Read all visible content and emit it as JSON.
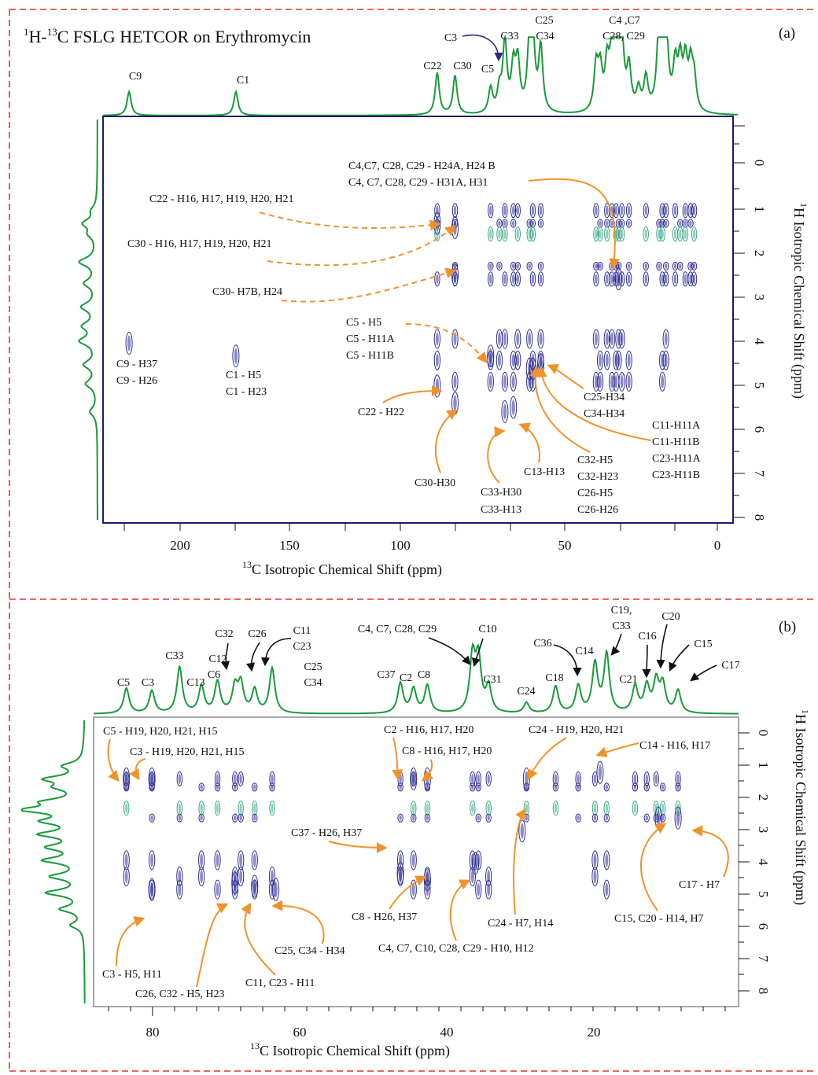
{
  "figure": {
    "title_prefix": "1H-13C",
    "title_rest": " FSLG HETCOR on Erythromycin",
    "panel_a_label": "(a)",
    "panel_b_label": "(b)"
  },
  "colors": {
    "border_dash": "#e8322a",
    "spectrum_1d": "#1a9a3a",
    "contour": "#2e2e96",
    "contour_light": "#3aa88a",
    "annotation_arrow": "#f0922b",
    "black_arrow": "#111111",
    "frame_a": "#1c1c6e",
    "frame_b": "#8a8a8a"
  },
  "chart_data": [
    {
      "panel": "(a)",
      "type": "heatmap",
      "title": "1H-13C FSLG HETCOR on Erythromycin",
      "xlabel": "13C Isotropic Chemical Shift (ppm)",
      "ylabel": "1H Isotropic Chemical Shift (ppm)",
      "x_axis": {
        "reversed": true,
        "xlim": [
          225,
          -5
        ],
        "ticks": [
          200,
          150,
          100,
          50,
          0
        ]
      },
      "y_axis": {
        "reversed": true,
        "ylim": [
          -1.2,
          8.3
        ],
        "ticks": [
          0,
          1,
          2,
          3,
          4,
          5,
          6,
          7,
          8
        ]
      },
      "projection_13C": [
        {
          "ppm": 215.5,
          "height": 0.32
        },
        {
          "ppm": 176.5,
          "height": 0.32
        },
        {
          "ppm": 103.0,
          "height": 0.56
        },
        {
          "ppm": 96.5,
          "height": 0.52
        },
        {
          "ppm": 83.5,
          "height": 0.33
        },
        {
          "ppm": 80.3,
          "height": 0.29
        },
        {
          "ppm": 78.3,
          "height": 0.94
        },
        {
          "ppm": 75.2,
          "height": 0.58
        },
        {
          "ppm": 73.6,
          "height": 0.64
        },
        {
          "ppm": 69.3,
          "height": 0.88
        },
        {
          "ppm": 68.1,
          "height": 0.9
        },
        {
          "ppm": 65.2,
          "height": 0.86
        },
        {
          "ppm": 45.0,
          "height": 0.6
        },
        {
          "ppm": 43.5,
          "height": 0.52
        },
        {
          "ppm": 41.0,
          "height": 0.58
        },
        {
          "ppm": 39.2,
          "height": 0.67
        },
        {
          "ppm": 37.7,
          "height": 0.86
        },
        {
          "ppm": 36.8,
          "height": 0.89
        },
        {
          "ppm": 35.6,
          "height": 0.72
        },
        {
          "ppm": 33.0,
          "height": 0.56
        },
        {
          "ppm": 29.5,
          "height": 0.28
        },
        {
          "ppm": 26.8,
          "height": 0.44
        },
        {
          "ppm": 22.0,
          "height": 0.95
        },
        {
          "ppm": 20.8,
          "height": 0.98
        },
        {
          "ppm": 19.5,
          "height": 1.0
        },
        {
          "ppm": 16.1,
          "height": 0.58
        },
        {
          "ppm": 14.3,
          "height": 0.62
        },
        {
          "ppm": 12.4,
          "height": 0.63
        },
        {
          "ppm": 10.5,
          "height": 0.58
        },
        {
          "ppm": 9.2,
          "height": 0.42
        }
      ],
      "projection_1H": [
        {
          "ppm": 1.0,
          "height": 0.2
        },
        {
          "ppm": 1.3,
          "height": 0.55
        },
        {
          "ppm": 1.55,
          "height": 0.3
        },
        {
          "ppm": 2.2,
          "height": 0.72
        },
        {
          "ppm": 2.7,
          "height": 0.5
        },
        {
          "ppm": 3.25,
          "height": 0.62
        },
        {
          "ppm": 3.7,
          "height": 0.55
        },
        {
          "ppm": 4.05,
          "height": 0.68
        },
        {
          "ppm": 4.6,
          "height": 0.52
        },
        {
          "ppm": 5.05,
          "height": 0.45
        },
        {
          "ppm": 5.7,
          "height": 0.3
        }
      ],
      "peak_labels": [
        {
          "label": "C9",
          "ppm": 215.5
        },
        {
          "label": "C1",
          "ppm": 176.5
        },
        {
          "label": "C22",
          "ppm": 103.0
        },
        {
          "label": "C30",
          "ppm": 96.5
        },
        {
          "label": "C3",
          "ppm": 80.3
        },
        {
          "label": "C5",
          "ppm": 83.5
        },
        {
          "label": "C33",
          "ppm": 78.3
        },
        {
          "label": "C25 C34",
          "ppm": 65.2
        },
        {
          "label": "C4 ,C7 C28, C29",
          "ppm": 36.8
        }
      ],
      "correlations": [
        {
          "c_ppm": 215.5,
          "h_ppm": 4.1,
          "assignment": "C9 - H37 / C9 - H26"
        },
        {
          "c_ppm": 176.5,
          "h_ppm": 4.4,
          "assignment": "C1 - H5 / C1 - H23"
        },
        {
          "c_ppm": 103.0,
          "h_ppm": 1.3,
          "assignment": "C22 - H16, H17, H19, H20, H21"
        },
        {
          "c_ppm": 96.5,
          "h_ppm": 1.4,
          "assignment": "C30 - H16, H17, H19, H20, H21"
        },
        {
          "c_ppm": 96.5,
          "h_ppm": 2.5,
          "assignment": "C30- H7B, H24"
        },
        {
          "c_ppm": 103.0,
          "h_ppm": 5.1,
          "assignment": "C22 - H22"
        },
        {
          "c_ppm": 96.5,
          "h_ppm": 5.5,
          "assignment": "C30-H30"
        },
        {
          "c_ppm": 83.5,
          "h_ppm": 4.4,
          "assignment": "C5 - H5 / C5 - H11A / C5 - H11B"
        },
        {
          "c_ppm": 78.3,
          "h_ppm": 5.7,
          "assignment": "C33-H30 / C33-H13"
        },
        {
          "c_ppm": 75.2,
          "h_ppm": 5.6,
          "assignment": "C13-H13"
        },
        {
          "c_ppm": 69.3,
          "h_ppm": 4.7,
          "assignment": "C32-H5 / C32-H23 / C26-H5 / C26-H26"
        },
        {
          "c_ppm": 68.1,
          "h_ppm": 4.7,
          "assignment": "C11-H11A / C11-H11B / C23-H11A / C23-H11B"
        },
        {
          "c_ppm": 65.2,
          "h_ppm": 4.6,
          "assignment": "C25-H34 / C34-H34"
        },
        {
          "c_ppm": 36.8,
          "h_ppm": 2.6,
          "assignment": "C4,C7, C28, C29 - H24A, H24 B / C4, C7, C28, C29 - H31A, H31"
        }
      ]
    },
    {
      "panel": "(b)",
      "type": "heatmap",
      "xlabel": "13C Isotropic Chemical Shift (ppm)",
      "ylabel": "1H Isotropic Chemical Shift (ppm)",
      "x_axis": {
        "reversed": true,
        "xlim": [
          89,
          0.5
        ],
        "ticks": [
          80,
          60,
          40,
          20
        ]
      },
      "y_axis": {
        "reversed": true,
        "ylim": [
          -0.6,
          8.3
        ],
        "ticks": [
          0,
          1,
          2,
          3,
          4,
          5,
          6,
          7,
          8
        ]
      },
      "projection_13C": [
        {
          "ppm": 84.5,
          "height": 0.34
        },
        {
          "ppm": 81.0,
          "height": 0.3
        },
        {
          "ppm": 77.2,
          "height": 0.62
        },
        {
          "ppm": 74.2,
          "height": 0.36
        },
        {
          "ppm": 72.0,
          "height": 0.42
        },
        {
          "ppm": 69.6,
          "height": 0.34
        },
        {
          "ppm": 68.8,
          "height": 0.38
        },
        {
          "ppm": 66.9,
          "height": 0.31
        },
        {
          "ppm": 64.5,
          "height": 0.6
        },
        {
          "ppm": 46.9,
          "height": 0.4
        },
        {
          "ppm": 45.1,
          "height": 0.32
        },
        {
          "ppm": 43.2,
          "height": 0.37
        },
        {
          "ppm": 37.0,
          "height": 0.74
        },
        {
          "ppm": 36.2,
          "height": 0.7
        },
        {
          "ppm": 34.8,
          "height": 0.34
        },
        {
          "ppm": 29.6,
          "height": 0.14
        },
        {
          "ppm": 25.6,
          "height": 0.36
        },
        {
          "ppm": 22.5,
          "height": 0.36
        },
        {
          "ppm": 20.2,
          "height": 0.65
        },
        {
          "ppm": 18.6,
          "height": 0.78
        },
        {
          "ppm": 14.7,
          "height": 0.35
        },
        {
          "ppm": 13.1,
          "height": 0.35
        },
        {
          "ppm": 11.8,
          "height": 0.41
        },
        {
          "ppm": 10.9,
          "height": 0.37
        },
        {
          "ppm": 8.8,
          "height": 0.3
        }
      ],
      "projection_1H": [
        {
          "ppm": 0.9,
          "height": 0.3
        },
        {
          "ppm": 1.3,
          "height": 0.55
        },
        {
          "ppm": 1.55,
          "height": 0.35
        },
        {
          "ppm": 2.0,
          "height": 0.5
        },
        {
          "ppm": 2.25,
          "height": 0.85
        },
        {
          "ppm": 2.6,
          "height": 0.55
        },
        {
          "ppm": 3.0,
          "height": 0.62
        },
        {
          "ppm": 3.4,
          "height": 0.5
        },
        {
          "ppm": 3.8,
          "height": 0.58
        },
        {
          "ppm": 4.3,
          "height": 0.48
        },
        {
          "ppm": 4.8,
          "height": 0.56
        },
        {
          "ppm": 5.3,
          "height": 0.35
        },
        {
          "ppm": 5.8,
          "height": 0.2
        }
      ],
      "peak_labels": [
        {
          "label": "C5",
          "ppm": 84.5
        },
        {
          "label": "C3",
          "ppm": 81.0
        },
        {
          "label": "C33",
          "ppm": 77.2
        },
        {
          "label": "C13",
          "ppm": 74.2
        },
        {
          "label": "C12",
          "ppm": 72.0
        },
        {
          "label": "C6",
          "ppm": 72.0
        },
        {
          "label": "C32",
          "ppm": 69.6
        },
        {
          "label": "C26",
          "ppm": 66.9
        },
        {
          "label": "C11 C23",
          "ppm": 64.5
        },
        {
          "label": "C25 C34",
          "ppm": 64.5
        },
        {
          "label": "C37",
          "ppm": 46.9
        },
        {
          "label": "C2",
          "ppm": 45.1
        },
        {
          "label": "C8",
          "ppm": 43.2
        },
        {
          "label": "C4, C7, C28, C29",
          "ppm": 37.0
        },
        {
          "label": "C10",
          "ppm": 36.2
        },
        {
          "label": "C31",
          "ppm": 34.8
        },
        {
          "label": "C24",
          "ppm": 29.6
        },
        {
          "label": "C18",
          "ppm": 25.6
        },
        {
          "label": "C36",
          "ppm": 22.5
        },
        {
          "label": "C14",
          "ppm": 20.2
        },
        {
          "label": "C19, C33",
          "ppm": 18.6
        },
        {
          "label": "C21",
          "ppm": 14.7
        },
        {
          "label": "C16",
          "ppm": 13.1
        },
        {
          "label": "C20",
          "ppm": 11.8
        },
        {
          "label": "C15",
          "ppm": 10.9
        },
        {
          "label": "C17",
          "ppm": 8.8
        }
      ],
      "correlations": [
        {
          "c_ppm": 84.5,
          "h_ppm": 1.3,
          "assignment": "C5 - H19, H20, H21, H15"
        },
        {
          "c_ppm": 81.0,
          "h_ppm": 1.3,
          "assignment": "C3 - H19, H20, H21, H15"
        },
        {
          "c_ppm": 45.1,
          "h_ppm": 1.3,
          "assignment": "C2 - H16, H17, H20"
        },
        {
          "c_ppm": 43.2,
          "h_ppm": 1.3,
          "assignment": "C8 - H16, H17, H20"
        },
        {
          "c_ppm": 29.6,
          "h_ppm": 1.3,
          "assignment": "C24 - H19, H20, H21"
        },
        {
          "c_ppm": 19.5,
          "h_ppm": 1.1,
          "assignment": "C14 - H16, H17"
        },
        {
          "c_ppm": 46.9,
          "h_ppm": 4.2,
          "assignment": "C37 - H26, H37"
        },
        {
          "c_ppm": 43.2,
          "h_ppm": 4.4,
          "assignment": "C8 - H26, H37"
        },
        {
          "c_ppm": 36.6,
          "h_ppm": 3.9,
          "assignment": "C4, C7, C10, C28, C29 - H10, H12"
        },
        {
          "c_ppm": 30.2,
          "h_ppm": 2.9,
          "assignment": "C24 - H7, H14"
        },
        {
          "c_ppm": 11.5,
          "h_ppm": 2.5,
          "assignment": "C15, C20 - H14, H7"
        },
        {
          "c_ppm": 8.8,
          "h_ppm": 2.5,
          "assignment": "C17 - H7"
        },
        {
          "c_ppm": 81.0,
          "h_ppm": 4.7,
          "assignment": "C3 - H5, H11"
        },
        {
          "c_ppm": 69.6,
          "h_ppm": 4.5,
          "assignment": "C26, C32 - H5, H23"
        },
        {
          "c_ppm": 66.9,
          "h_ppm": 4.6,
          "assignment": "C11, C23 - H11"
        },
        {
          "c_ppm": 64.0,
          "h_ppm": 4.7,
          "assignment": "C25, C34 - H34"
        }
      ]
    }
  ],
  "text": {
    "a": {
      "c9": "C9",
      "c1": "C1",
      "c22": "C22",
      "c30": "C30",
      "c3": "C3",
      "c5": "C5",
      "c33": "C33",
      "c25": "C25",
      "c34": "C34",
      "c4c7": "C4 ,C7",
      "c28c29": "C28, C29",
      "x_tick_200": "200",
      "x_tick_150": "150",
      "x_tick_100": "100",
      "x_tick_50": "50",
      "x_tick_0": "0",
      "y_tick_0": "0",
      "y_tick_1": "1",
      "y_tick_2": "2",
      "y_tick_3": "3",
      "y_tick_4": "4",
      "y_tick_5": "5",
      "y_tick_6": "6",
      "y_tick_7": "7",
      "y_tick_8": "8",
      "x_label_rest": "C Isotropic Chemical Shift (ppm)",
      "x_label_sup": "13",
      "y_label_sup": "1",
      "y_label_rest": "H Isotropic Chemical Shift (ppm)",
      "ann_c4_l1": "C4,C7, C28, C29 - H24A, H24 B",
      "ann_c4_l2": "C4, C7, C28, C29 - H31A, H31",
      "ann_c22_multi": "C22 - H16, H17, H19, H20, H21",
      "ann_c30_multi": "C30 - H16, H17, H19, H20, H21",
      "ann_c30_h7b": "C30- H7B, H24",
      "ann_c5_l1": "C5 - H5",
      "ann_c5_l2": "C5 - H11A",
      "ann_c5_l3": "C5 - H11B",
      "ann_c9_l1": "C9 - H37",
      "ann_c9_l2": "C9 - H26",
      "ann_c1_l1": "C1 - H5",
      "ann_c1_l2": "C1 - H23",
      "ann_c22_h22": "C22 - H22",
      "ann_c30_h30": "C30-H30",
      "ann_c33_l1": "C33-H30",
      "ann_c33_l2": "C33-H13",
      "ann_c13": "C13-H13",
      "ann_c32_l1": "C32-H5",
      "ann_c32_l2": "C32-H23",
      "ann_c32_l3": "C26-H5",
      "ann_c32_l4": "C26-H26",
      "ann_c25_l1": "C25-H34",
      "ann_c25_l2": "C34-H34",
      "ann_c11_l1": "C11-H11A",
      "ann_c11_l2": "C11-H11B",
      "ann_c11_l3": "C23-H11A",
      "ann_c11_l4": "C23-H11B"
    },
    "b": {
      "c5": "C5",
      "c3": "C3",
      "c33": "C33",
      "c13": "C13",
      "c12": "C12",
      "c6": "C6",
      "c32": "C32",
      "c26": "C26",
      "c11": "C11",
      "c23": "C23",
      "c25": "C25",
      "c34": "C34",
      "c37": "C37",
      "c2": "C2",
      "c8": "C8",
      "c4728": "C4, C7, C28, C29",
      "c10": "C10",
      "c31": "C31",
      "c24": "C24",
      "c18": "C18",
      "c36": "C36",
      "c14": "C14",
      "c19": "C19,",
      "c33b": "C33",
      "c21": "C21",
      "c16": "C16",
      "c20": "C20",
      "c15": "C15",
      "c17": "C17",
      "x_tick_80": "80",
      "x_tick_60": "60",
      "x_tick_40": "40",
      "x_tick_20": "20",
      "y_tick_0": "0",
      "y_tick_1": "1",
      "y_tick_2": "2",
      "y_tick_3": "3",
      "y_tick_4": "4",
      "y_tick_5": "5",
      "y_tick_6": "6",
      "y_tick_7": "7",
      "y_tick_8": "8",
      "x_label_sup": "13",
      "x_label_rest": "C Isotropic Chemical Shift (ppm)",
      "y_label_sup": "1",
      "y_label_rest": "H Isotropic Chemical Shift (ppm)",
      "ann_c5": "C5 - H19, H20, H21, H15",
      "ann_c3": "C3 - H19, H20, H21, H15",
      "ann_c2": "C2 - H16, H17, H20",
      "ann_c8": "C8 - H16, H17, H20",
      "ann_c24": "C24 - H19, H20, H21",
      "ann_c14": "C14 - H16, H17",
      "ann_c37": "C37 - H26, H37",
      "ann_c8b": "C8 - H26, H37",
      "ann_c4b": "C4, C7, C10, C28, C29 - H10, H12",
      "ann_c24b": "C24 - H7, H14",
      "ann_c15": "C15, C20 - H14, H7",
      "ann_c17": "C17 - H7",
      "ann_c3b": "C3 - H5, H11",
      "ann_c26": "C26, C32 - H5, H23",
      "ann_c11": "C11, C23 - H11",
      "ann_c25": "C25, C34 - H34"
    }
  }
}
